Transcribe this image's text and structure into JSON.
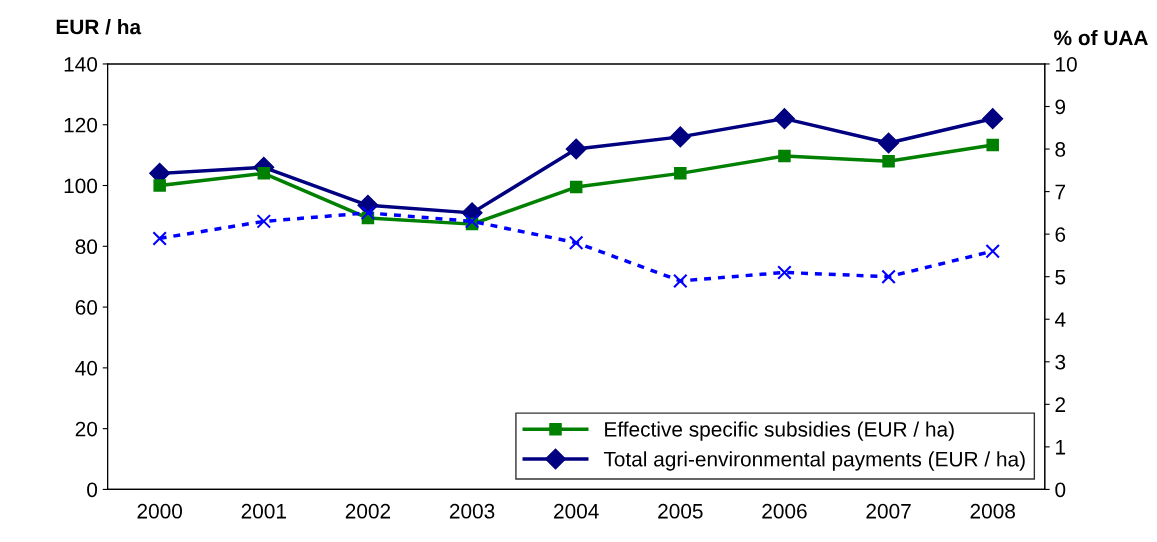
{
  "chart_data": {
    "type": "line",
    "ylabel": "EUR / ha",
    "y2label": "% of UAA",
    "categories": [
      "2000",
      "2001",
      "2002",
      "2003",
      "2004",
      "2005",
      "2006",
      "2007",
      "2008"
    ],
    "series": [
      {
        "name": "Effective specific subsidies (EUR / ha)",
        "color": "#008000",
        "marker": "square",
        "line_style": "solid",
        "values": [
          100,
          104,
          89.3,
          87.3,
          99.5,
          104,
          109.7,
          108,
          113.3
        ]
      },
      {
        "name": "Total agri-environmental payments (EUR / ha)",
        "color": "#000080",
        "marker": "diamond",
        "line_style": "solid",
        "values": [
          104,
          106,
          93.5,
          91,
          112,
          116,
          122,
          114,
          122
        ]
      },
      {
        "color": "#0000ff",
        "marker": "cross",
        "line_style": "dashed",
        "axis": "y2",
        "values": [
          5.9,
          6.3,
          6.5,
          6.3,
          5.8,
          4.9,
          5.1,
          5.0,
          5.6
        ]
      }
    ],
    "ylim": [
      0,
      140
    ],
    "yticks": [
      0,
      20,
      40,
      60,
      80,
      100,
      120,
      140
    ],
    "y2lim": [
      0,
      10
    ],
    "y2ticks": [
      0,
      1,
      2,
      3,
      4,
      5,
      6,
      7,
      8,
      9,
      10
    ],
    "grid": false,
    "legend": "bottom right"
  }
}
